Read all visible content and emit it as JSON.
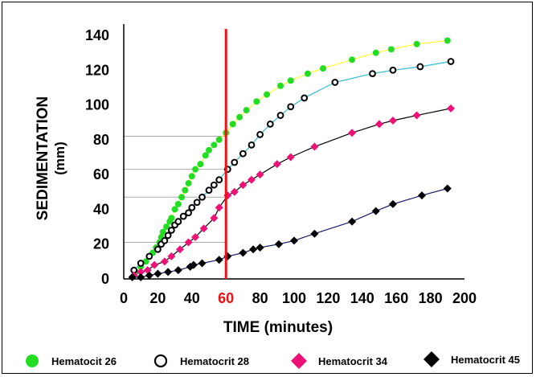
{
  "chart_data": {
    "type": "line",
    "xlabel": "TIME  (minutes)",
    "ylabel_main": "SEDIMENTATION",
    "ylabel_unit": "(mm)",
    "xlim": [
      0,
      200
    ],
    "ylim": [
      0,
      140
    ],
    "x_ticks": [
      "0",
      "20",
      "40",
      "60",
      "80",
      "100",
      "120",
      "140",
      "160",
      "180",
      "200"
    ],
    "y_ticks": [
      "0",
      "20",
      "40",
      "60",
      "80",
      "100",
      "120",
      "140"
    ],
    "highlight_x": 60,
    "highlight_label": "60",
    "highlight_color": "#ee1111",
    "guide_levels": [
      82,
      63,
      47,
      21
    ],
    "series": [
      {
        "name": "Hematocit 26",
        "marker": "filled-circle",
        "color": "#22dd22",
        "line_color": "#ffff33",
        "x": [
          7,
          10,
          13,
          15,
          17,
          19,
          21,
          22,
          23,
          25,
          27,
          28,
          30,
          32,
          34,
          36,
          38,
          40,
          42,
          45,
          48,
          50,
          53,
          56,
          60,
          64,
          68,
          72,
          78,
          84,
          92,
          98,
          108,
          117,
          134,
          148,
          157,
          172,
          190
        ],
        "values": [
          4,
          7,
          10,
          13,
          15,
          18,
          21,
          24,
          27,
          30,
          33,
          35,
          40,
          43,
          47,
          51,
          55,
          59,
          63,
          66,
          71,
          74,
          77,
          80,
          84,
          89,
          93,
          97,
          102,
          106,
          111,
          114,
          118,
          121,
          126,
          130,
          132,
          135,
          137
        ]
      },
      {
        "name": "Hematocrit 28",
        "marker": "open-circle",
        "color": "#000000",
        "line_color": "#33bbcc",
        "x": [
          6,
          10,
          15,
          20,
          22,
          24,
          26,
          28,
          30,
          32,
          35,
          38,
          40,
          43,
          46,
          50,
          53,
          56,
          61,
          65,
          70,
          75,
          80,
          86,
          92,
          98,
          106,
          124,
          146,
          158,
          174,
          192
        ],
        "values": [
          5,
          9,
          13,
          17,
          20,
          22,
          25,
          28,
          31,
          33,
          36,
          38,
          41,
          44,
          47,
          51,
          54,
          57,
          63,
          67,
          72,
          77,
          83,
          89,
          94,
          99,
          104,
          113,
          118,
          120,
          122,
          125
        ]
      },
      {
        "name": "Hematocrit 34",
        "marker": "filled-diamond",
        "color": "#ee1177",
        "line_color": "#000000",
        "x": [
          6,
          10,
          14,
          18,
          24,
          28,
          33,
          38,
          42,
          47,
          53,
          56,
          61,
          65,
          70,
          75,
          80,
          90,
          98,
          112,
          134,
          150,
          158,
          172,
          192
        ],
        "values": [
          2,
          4,
          5,
          8,
          10,
          13,
          17,
          21,
          24,
          29,
          35,
          41,
          48,
          50,
          54,
          57,
          60,
          66,
          70,
          76,
          84,
          89,
          91,
          94,
          98
        ]
      },
      {
        "name": "Hematocrit 45",
        "marker": "filled-diamond",
        "color": "#000000",
        "line_color": "#1a1a66",
        "x": [
          5,
          10,
          15,
          20,
          26,
          32,
          39,
          41,
          46,
          56,
          61,
          70,
          76,
          80,
          91,
          100,
          112,
          134,
          148,
          158,
          175,
          190
        ],
        "values": [
          1,
          1,
          2,
          3,
          4,
          5,
          7,
          8,
          9,
          11,
          13,
          15,
          17,
          18,
          20,
          22,
          26,
          33,
          39,
          43,
          48,
          52
        ]
      }
    ]
  }
}
